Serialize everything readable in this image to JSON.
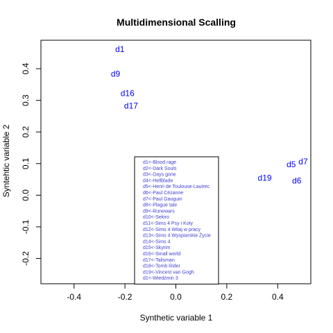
{
  "chart_data": {
    "type": "scatter",
    "title": "Multidimensional Scalling",
    "xlabel": "Synthetic variable 1",
    "ylabel": "Syntehtic variable 2",
    "xlim": [
      -0.53,
      0.53
    ],
    "ylim": [
      -0.28,
      0.49
    ],
    "xticks": [
      -0.4,
      -0.2,
      0.0,
      0.2,
      0.4
    ],
    "xtick_labels": [
      "-0.4",
      "-0.2",
      "0.0",
      "0.2",
      "0.4"
    ],
    "yticks": [
      -0.2,
      -0.1,
      0.0,
      0.1,
      0.2,
      0.3,
      0.4
    ],
    "ytick_labels": [
      "-0.2",
      "-0.1",
      "0.0",
      "0.1",
      "0.2",
      "0.3",
      "0.4"
    ],
    "point_color": "#0000ff",
    "legend_color": "#4040d0",
    "points": [
      {
        "label": "d1",
        "x": -0.22,
        "y": 0.462
      },
      {
        "label": "d9",
        "x": -0.237,
        "y": 0.384
      },
      {
        "label": "d16",
        "x": -0.19,
        "y": 0.322
      },
      {
        "label": "d17",
        "x": -0.176,
        "y": 0.283
      },
      {
        "label": "d5",
        "x": 0.453,
        "y": 0.097
      },
      {
        "label": "d7",
        "x": 0.5,
        "y": 0.106
      },
      {
        "label": "d6",
        "x": 0.475,
        "y": 0.046
      },
      {
        "label": "d19",
        "x": 0.349,
        "y": 0.054
      }
    ],
    "legend": {
      "position": "bottom-center",
      "entries": [
        "d1<-Blood rage",
        "d2<-Dark Souls",
        "d3<-Days gone",
        "d4<-Hellblade",
        "d5<-Henri de Toulouse-Lautrec",
        "d6<-Paul Cézanne",
        "d7<-Paul Gauguin",
        "d8<-Plague tale",
        "d9<-Runewars",
        "d10<-Sekiro",
        "d11<-Sims 4 Psy i Koty",
        "d12<-Sims 4 Witaj w pracy",
        "d13<-Sims 4 Wyspiarskie Życie",
        "d14<-Sims 4",
        "d15<-Skyrim",
        "d16<-Small world",
        "d17<-Talisman",
        "d18<-Tomb Rider",
        "d19<-Vincent van Gogh",
        "d1<-Wiedźmin 3"
      ]
    },
    "grid": false
  }
}
